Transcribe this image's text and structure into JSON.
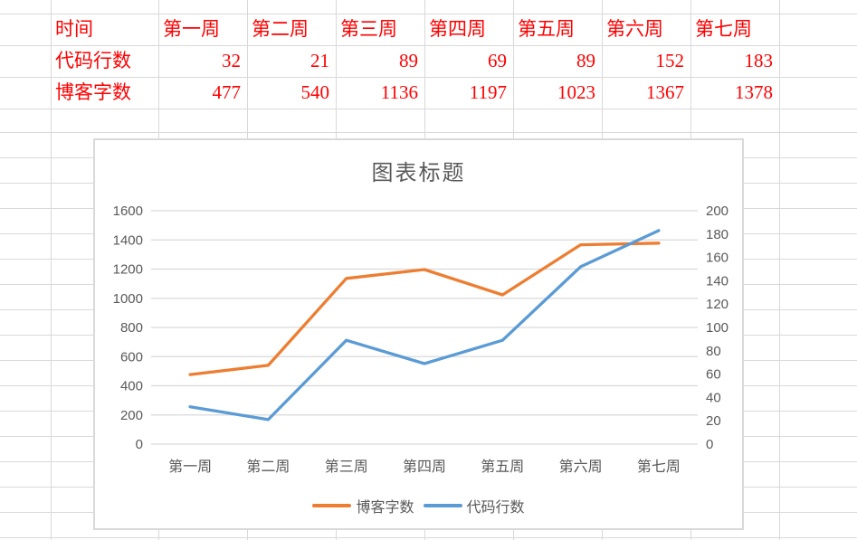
{
  "sheet": {
    "background": "#FFFFFF",
    "gridline_color": "#D9D9D9",
    "table": {
      "text_color": "#FF0000",
      "header_row": [
        "时间",
        "第一周",
        "第二周",
        "第三周",
        "第四周",
        "第五周",
        "第六周",
        "第七周"
      ],
      "rows": [
        {
          "label": "代码行数",
          "values": [
            32,
            21,
            89,
            69,
            89,
            152,
            183
          ]
        },
        {
          "label": "博客字数",
          "values": [
            477,
            540,
            1136,
            1197,
            1023,
            1367,
            1378
          ]
        }
      ]
    }
  },
  "chart_data": {
    "type": "line",
    "title": "图表标题",
    "categories": [
      "第一周",
      "第二周",
      "第三周",
      "第四周",
      "第五周",
      "第六周",
      "第七周"
    ],
    "series": [
      {
        "name": "博客字数",
        "axis": "left",
        "color": "#ED7D31",
        "values": [
          477,
          540,
          1136,
          1197,
          1023,
          1367,
          1378
        ]
      },
      {
        "name": "代码行数",
        "axis": "right",
        "color": "#5B9BD5",
        "values": [
          32,
          21,
          89,
          69,
          89,
          152,
          183
        ]
      }
    ],
    "left_axis": {
      "min": 0,
      "max": 1600,
      "step": 200
    },
    "right_axis": {
      "min": 0,
      "max": 200,
      "step": 20
    },
    "grid": true,
    "gridline_color": "#D9D9D9",
    "label_color": "#595959",
    "legend_position": "bottom"
  }
}
